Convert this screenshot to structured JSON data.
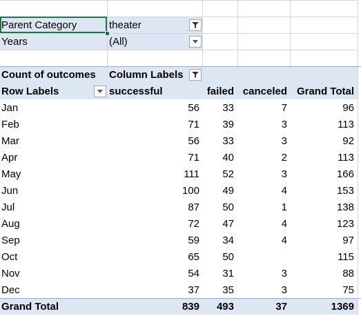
{
  "filters": [
    {
      "label": "Parent Category",
      "value": "theater"
    },
    {
      "label": "Years",
      "value": "(All)"
    }
  ],
  "pivot": {
    "measure_label": "Count of outcomes",
    "column_labels": "Column Labels",
    "row_labels": "Row Labels",
    "columns": [
      "successful",
      "failed",
      "canceled",
      "Grand Total"
    ],
    "rows": [
      {
        "label": "Jan",
        "values": [
          "56",
          "33",
          "7",
          "96"
        ]
      },
      {
        "label": "Feb",
        "values": [
          "71",
          "39",
          "3",
          "113"
        ]
      },
      {
        "label": "Mar",
        "values": [
          "56",
          "33",
          "3",
          "92"
        ]
      },
      {
        "label": "Apr",
        "values": [
          "71",
          "40",
          "2",
          "113"
        ]
      },
      {
        "label": "May",
        "values": [
          "111",
          "52",
          "3",
          "166"
        ]
      },
      {
        "label": "Jun",
        "values": [
          "100",
          "49",
          "4",
          "153"
        ]
      },
      {
        "label": "Jul",
        "values": [
          "87",
          "50",
          "1",
          "138"
        ]
      },
      {
        "label": "Aug",
        "values": [
          "72",
          "47",
          "4",
          "123"
        ]
      },
      {
        "label": "Sep",
        "values": [
          "59",
          "34",
          "4",
          "97"
        ]
      },
      {
        "label": "Oct",
        "values": [
          "65",
          "50",
          "",
          "115"
        ]
      },
      {
        "label": "Nov",
        "values": [
          "54",
          "31",
          "3",
          "88"
        ]
      },
      {
        "label": "Dec",
        "values": [
          "37",
          "35",
          "3",
          "75"
        ]
      }
    ],
    "total": {
      "label": "Grand Total",
      "values": [
        "839",
        "493",
        "37",
        "1369"
      ]
    }
  },
  "colors": {
    "header_band": "#dde6f3",
    "selection": "#217346",
    "gridline": "#d4d4d4"
  },
  "icons": {
    "filter": "filter-funnel-icon",
    "dropdown": "chevron-down-icon"
  }
}
